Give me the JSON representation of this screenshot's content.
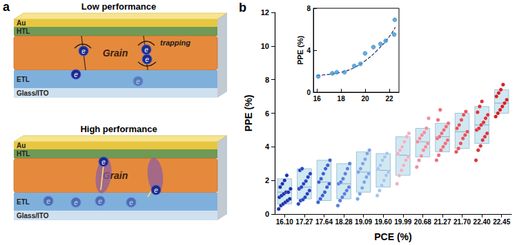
{
  "diagram": {
    "panel_label": "a",
    "panels": [
      {
        "title": "Low performance",
        "layers": [
          "Au",
          "HTL",
          "Grain",
          "ETL",
          "Glass/ITO"
        ],
        "annotation": "trapping",
        "carrier": "e"
      },
      {
        "title": "High performance",
        "layers": [
          "Au",
          "HTL",
          "Grain",
          "ETL",
          "Glass/ITO"
        ],
        "carrier": "e"
      }
    ]
  },
  "chart_data": [
    {
      "type": "box",
      "panel_label": "b",
      "x_label": "PCE (%)",
      "y_label": "PPE (%)",
      "categories": [
        "16.10",
        "17.27",
        "17.64",
        "18.28",
        "19.09",
        "19.60",
        "19.99",
        "20.68",
        "21.27",
        "21.70",
        "22.40",
        "22.45"
      ],
      "colors": [
        "#1a2fb0",
        "#2744c4",
        "#3b5fd4",
        "#5a7fe0",
        "#7da4e8",
        "#a6c4ee",
        "#f0b0c0",
        "#ef8fa0",
        "#ea6f7e",
        "#e4525e",
        "#dc3340",
        "#d41f2a"
      ],
      "box_low": [
        0.6,
        0.9,
        0.8,
        0.9,
        1.3,
        1.6,
        2.3,
        3.4,
        3.7,
        3.9,
        4.2,
        6.0
      ],
      "box_high": [
        2.1,
        2.7,
        3.2,
        3.0,
        3.7,
        3.6,
        4.6,
        5.1,
        5.4,
        6.0,
        6.4,
        7.4
      ],
      "box_median": [
        1.3,
        1.6,
        1.9,
        1.8,
        2.5,
        2.6,
        3.5,
        4.3,
        4.6,
        4.9,
        5.3,
        6.6
      ],
      "points": [
        [
          0.3,
          0.5,
          0.6,
          0.7,
          0.8,
          0.9,
          1.0,
          1.1,
          1.2,
          1.3,
          1.3,
          1.5,
          1.6,
          1.8,
          2.0,
          2.3
        ],
        [
          0.6,
          0.8,
          0.9,
          1.0,
          1.2,
          1.4,
          1.5,
          1.6,
          1.8,
          2.0,
          2.2,
          2.4,
          2.6,
          2.7
        ],
        [
          0.7,
          0.9,
          1.1,
          1.3,
          1.6,
          1.8,
          1.9,
          2.1,
          2.4,
          2.7,
          2.9,
          3.2
        ],
        [
          0.5,
          0.8,
          1.0,
          1.2,
          1.4,
          1.6,
          1.8,
          1.9,
          2.1,
          2.4,
          2.7,
          3.0
        ],
        [
          0.9,
          1.2,
          1.6,
          1.9,
          2.2,
          2.4,
          2.5,
          2.7,
          3.0,
          3.3,
          3.6,
          3.8
        ],
        [
          1.1,
          1.4,
          1.7,
          2.0,
          2.3,
          2.5,
          2.7,
          2.9,
          3.2,
          3.4,
          3.6
        ],
        [
          1.8,
          2.3,
          2.6,
          2.9,
          3.2,
          3.4,
          3.6,
          3.8,
          4.0,
          4.3,
          4.6,
          4.8
        ],
        [
          2.8,
          3.2,
          3.5,
          3.8,
          4.0,
          4.2,
          4.3,
          4.5,
          4.7,
          4.9,
          5.1,
          5.7
        ],
        [
          3.2,
          3.5,
          3.8,
          4.0,
          4.2,
          4.4,
          4.5,
          4.6,
          4.8,
          5.0,
          5.2,
          5.4,
          5.6,
          6.2
        ],
        [
          3.7,
          3.9,
          4.2,
          4.5,
          4.7,
          4.9,
          5.1,
          5.3,
          5.6,
          5.9,
          6.1
        ],
        [
          3.2,
          3.8,
          4.1,
          4.4,
          4.6,
          4.8,
          5.0,
          5.1,
          5.3,
          5.5,
          5.7,
          5.9,
          6.1,
          6.4,
          6.7
        ],
        [
          5.8,
          6.0,
          6.2,
          6.4,
          6.6,
          6.8,
          7.0,
          7.2,
          7.4,
          7.7
        ]
      ],
      "ylim": [
        0,
        12
      ],
      "yticks": [
        0,
        2,
        4,
        6,
        8,
        10,
        12
      ],
      "grid": false
    },
    {
      "type": "scatter",
      "y_label": "PPE (%)",
      "x": [
        16.1,
        17.27,
        17.64,
        18.28,
        19.09,
        19.6,
        19.99,
        20.68,
        21.27,
        21.7,
        22.4,
        22.45
      ],
      "values": [
        1.5,
        1.8,
        1.9,
        1.9,
        2.5,
        2.7,
        3.7,
        4.3,
        4.6,
        4.9,
        5.5,
        6.9
      ],
      "color": "#3a9ad9",
      "marker": "circle",
      "fit": {
        "x": [
          16.0,
          17.0,
          18.0,
          19.0,
          20.0,
          21.0,
          22.0,
          22.5
        ],
        "values": [
          1.6,
          1.7,
          1.9,
          2.3,
          3.0,
          4.0,
          5.3,
          6.2
        ],
        "color": "#1f2f6f",
        "line_style": "dashed"
      },
      "xlim": [
        15.7,
        22.8
      ],
      "xticks": [
        16,
        18,
        20,
        22
      ],
      "ylim": [
        0,
        8
      ],
      "yticks": [
        0,
        4,
        8
      ],
      "grid": false
    }
  ]
}
